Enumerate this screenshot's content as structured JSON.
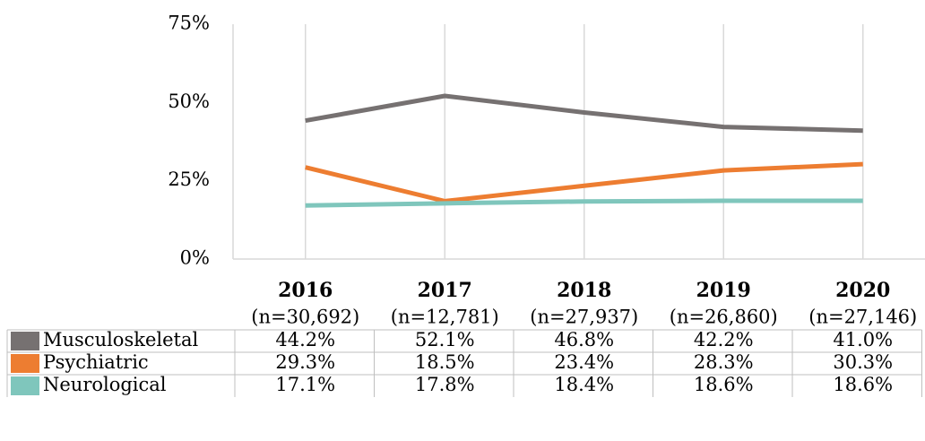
{
  "chart_data": {
    "type": "line",
    "categories": [
      "2016",
      "2017",
      "2018",
      "2019",
      "2020"
    ],
    "category_notes": [
      "(n=30,692)",
      "(n=12,781)",
      "(n=27,937)",
      "(n=26,860)",
      "(n=27,146)"
    ],
    "series": [
      {
        "name": "Musculoskeletal",
        "color": "#767171",
        "values": [
          44.2,
          52.1,
          46.8,
          42.2,
          41.0
        ],
        "value_labels": [
          "44.2%",
          "52.1%",
          "46.8%",
          "42.2%",
          "41.0%"
        ]
      },
      {
        "name": "Psychiatric",
        "color": "#ed7d31",
        "values": [
          29.3,
          18.5,
          23.4,
          28.3,
          30.3
        ],
        "value_labels": [
          "29.3%",
          "18.5%",
          "23.4%",
          "28.3%",
          "30.3%"
        ]
      },
      {
        "name": "Neurological",
        "color": "#7fc6bc",
        "values": [
          17.1,
          17.8,
          18.4,
          18.6,
          18.6
        ],
        "value_labels": [
          "17.1%",
          "17.8%",
          "18.4%",
          "18.6%",
          "18.6%"
        ]
      }
    ],
    "ylim": [
      0,
      75
    ],
    "yticks": [
      {
        "value": 0,
        "label": "0%"
      },
      {
        "value": 25,
        "label": "25%"
      },
      {
        "value": 50,
        "label": "50%"
      },
      {
        "value": 75,
        "label": "75%"
      }
    ],
    "grid": "vertical",
    "legend": "table"
  }
}
